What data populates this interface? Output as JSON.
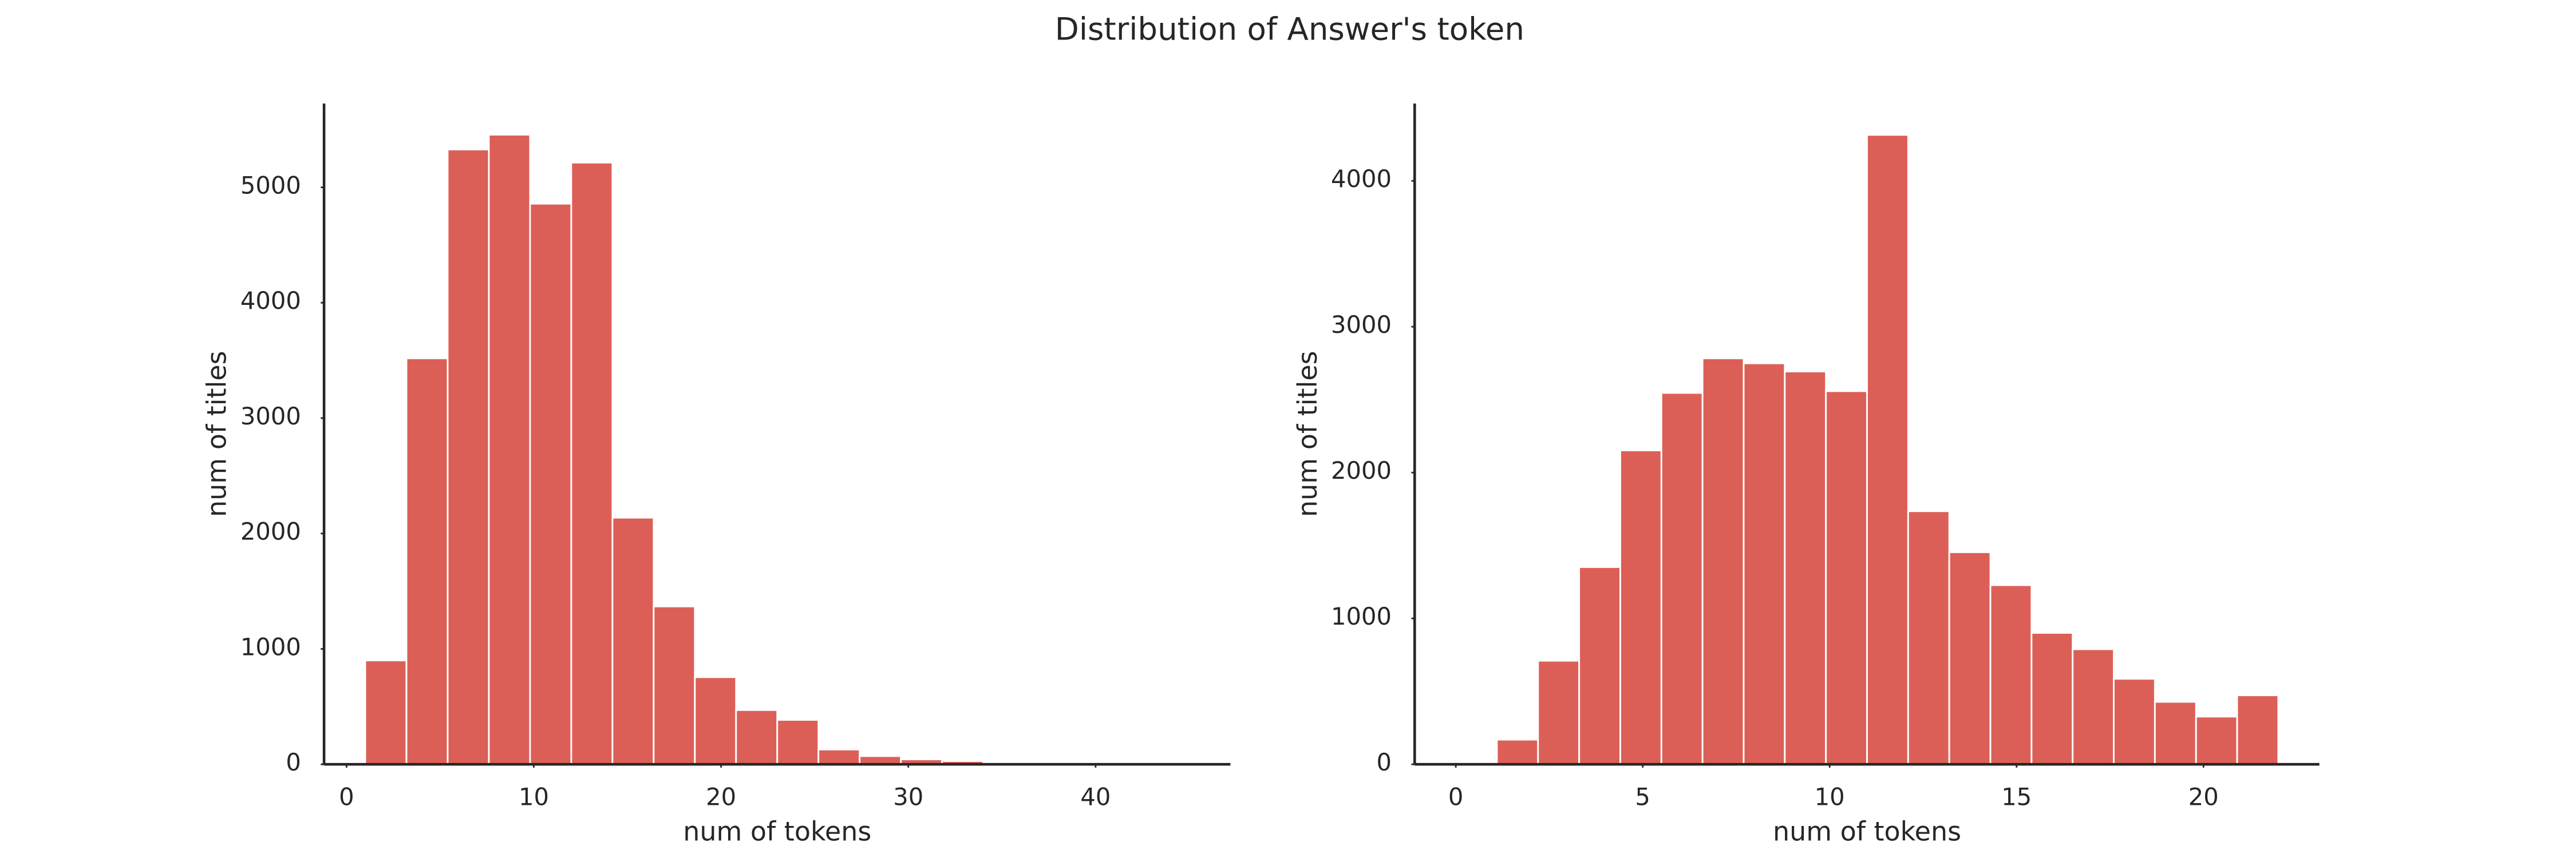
{
  "title": "Distribution of Answer's token",
  "chart_data": [
    {
      "type": "histogram",
      "xlabel": "num of tokens",
      "ylabel": "num of titles",
      "color": "#dc5f57",
      "bins": [
        1,
        3.2,
        5.4,
        7.6,
        9.8,
        12,
        14.2,
        16.4,
        18.6,
        20.8,
        23,
        25.2,
        27.4,
        29.6,
        31.8,
        34,
        36.2,
        38.4,
        40.6,
        42.8,
        45
      ],
      "counts": [
        900,
        3518,
        5328,
        5456,
        4858,
        5214,
        2137,
        1368,
        755,
        470,
        385,
        128,
        71,
        43,
        28,
        10,
        5,
        3,
        1,
        2
      ],
      "xlim": [
        -1.2,
        47.2
      ],
      "xticks": [
        0,
        10,
        20,
        30,
        40
      ],
      "ylim": [
        0,
        5726
      ],
      "yticks": [
        0,
        1000,
        2000,
        3000,
        4000,
        5000
      ]
    },
    {
      "type": "histogram",
      "xlabel": "num of tokens",
      "ylabel": "num of titles",
      "color": "#dc5f57",
      "bins": [
        0,
        1.1,
        2.2,
        3.3,
        4.4,
        5.5,
        6.6,
        7.7,
        8.8,
        9.9,
        11,
        12.1,
        13.2,
        14.3,
        15.4,
        16.5,
        17.6,
        18.7,
        19.8,
        20.9,
        22
      ],
      "counts": [
        0,
        169,
        710,
        1352,
        2152,
        2546,
        2783,
        2749,
        2693,
        2558,
        4315,
        1735,
        1454,
        1228,
        901,
        789,
        586,
        428,
        327,
        473
      ],
      "xlim": [
        -1.1,
        23.1
      ],
      "xticks": [
        0,
        5,
        10,
        15,
        20
      ],
      "ylim": [
        0,
        4530
      ],
      "yticks": [
        0,
        1000,
        2000,
        3000,
        4000
      ]
    }
  ]
}
